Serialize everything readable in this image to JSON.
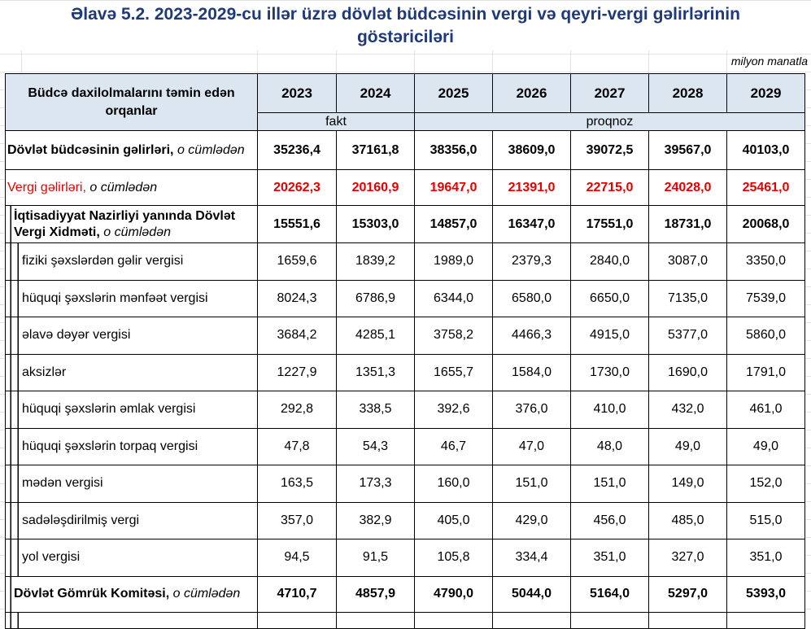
{
  "title": "Əlavə 5.2. 2023-2029-cu illər üzrə dövlət büdcəsinin vergi və qeyri-vergi gəlirlərinin göstəriciləri",
  "unit": "milyon manatla",
  "header": {
    "label": "Büdcə daxilolmalarını təmin edən orqanlar",
    "years": [
      "2023",
      "2024",
      "2025",
      "2026",
      "2027",
      "2028",
      "2029"
    ],
    "fakt": "fakt",
    "proqnoz": "proqnoz"
  },
  "colors": {
    "title": "#1f3a7a",
    "header_bg": "#dce6f1",
    "red": "#e60000"
  },
  "rows": [
    {
      "label": "Dövlət büdcəsinin gəlirləri,",
      "suffix": "o cümlədən",
      "values": [
        "35236,4",
        "37161,8",
        "38356,0",
        "38609,0",
        "39072,5",
        "39567,0",
        "40103,0"
      ]
    },
    {
      "label": "Vergi gəlirləri,",
      "suffix": "o cümlədən",
      "values": [
        "20262,3",
        "20160,9",
        "19647,0",
        "21391,0",
        "22715,0",
        "24028,0",
        "25461,0"
      ]
    },
    {
      "label": "İqtisadiyyat Nazirliyi yanında Dövlət Vergi Xidməti,",
      "suffix": "o cümlədən",
      "values": [
        "15551,6",
        "15303,0",
        "14857,0",
        "16347,0",
        "17551,0",
        "18731,0",
        "20068,0"
      ]
    },
    {
      "label": "fiziki şəxslərdən gəlir vergisi",
      "values": [
        "1659,6",
        "1839,2",
        "1989,0",
        "2379,3",
        "2840,0",
        "3087,0",
        "3350,0"
      ]
    },
    {
      "label": "hüquqi şəxslərin mənfəət vergisi",
      "values": [
        "8024,3",
        "6786,9",
        "6344,0",
        "6580,0",
        "6650,0",
        "7135,0",
        "7539,0"
      ]
    },
    {
      "label": "əlavə dəyər vergisi",
      "values": [
        "3684,2",
        "4285,1",
        "3758,2",
        "4466,3",
        "4915,0",
        "5377,0",
        "5860,0"
      ]
    },
    {
      "label": "aksizlər",
      "values": [
        "1227,9",
        "1351,3",
        "1655,7",
        "1584,0",
        "1730,0",
        "1690,0",
        "1791,0"
      ]
    },
    {
      "label": "hüquqi şəxslərin əmlak vergisi",
      "values": [
        "292,8",
        "338,5",
        "392,6",
        "376,0",
        "410,0",
        "432,0",
        "461,0"
      ]
    },
    {
      "label": "hüquqi şəxslərin torpaq vergisi",
      "values": [
        "47,8",
        "54,3",
        "46,7",
        "47,0",
        "48,0",
        "49,0",
        "49,0"
      ]
    },
    {
      "label": "mədən vergisi",
      "values": [
        "163,5",
        "173,3",
        "160,0",
        "151,0",
        "151,0",
        "149,0",
        "152,0"
      ]
    },
    {
      "label": "sadələşdirilmiş  vergi",
      "values": [
        "357,0",
        "382,9",
        "405,0",
        "429,0",
        "456,0",
        "485,0",
        "515,0"
      ]
    },
    {
      "label": "yol vergisi",
      "values": [
        "94,5",
        "91,5",
        "105,8",
        "334,4",
        "351,0",
        "327,0",
        "351,0"
      ]
    },
    {
      "label": "Dövlət Gömrük Komitəsi,",
      "suffix": "o cümlədən",
      "values": [
        "4710,7",
        "4857,9",
        "4790,0",
        "5044,0",
        "5164,0",
        "5297,0",
        "5393,0"
      ]
    }
  ]
}
